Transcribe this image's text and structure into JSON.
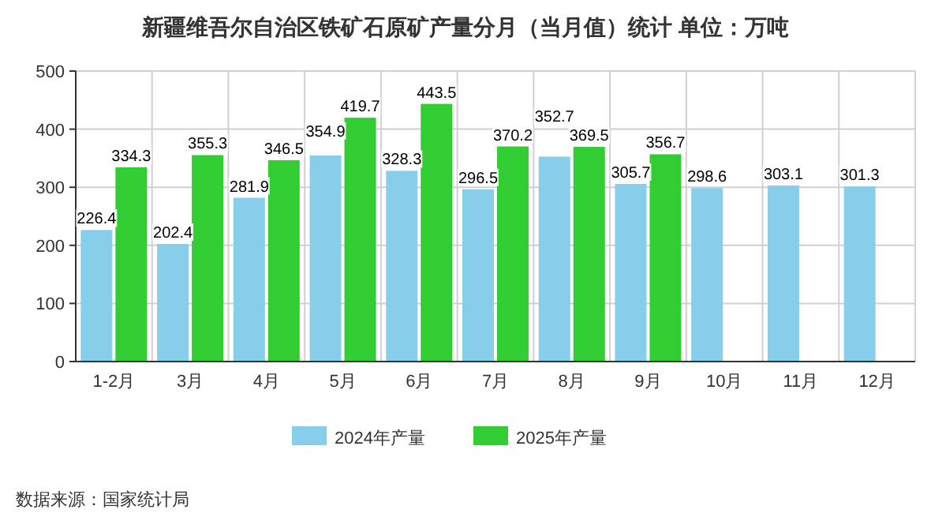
{
  "chart_data": {
    "type": "bar",
    "title": "新疆维吾尔自治区铁矿石原矿产量分月（当月值）统计  单位：万吨",
    "categories": [
      "1-2月",
      "3月",
      "4月",
      "5月",
      "6月",
      "7月",
      "8月",
      "9月",
      "10月",
      "11月",
      "12月"
    ],
    "series": [
      {
        "name": "2024年产量",
        "color": "#87ceeb",
        "values": [
          226.4,
          202.4,
          281.9,
          354.9,
          328.3,
          296.5,
          352.7,
          305.7,
          298.6,
          303.1,
          301.3
        ]
      },
      {
        "name": "2025年产量",
        "color": "#32cd32",
        "values": [
          334.3,
          355.3,
          346.5,
          419.7,
          443.5,
          370.2,
          369.5,
          356.7,
          null,
          null,
          null
        ]
      }
    ],
    "ylim": [
      0,
      500
    ],
    "yticks": [
      0,
      100,
      200,
      300,
      400,
      500
    ],
    "grid": true,
    "legend": "bottom",
    "data_labels": true,
    "annotations": [
      "数据来源：国家统计局"
    ]
  }
}
